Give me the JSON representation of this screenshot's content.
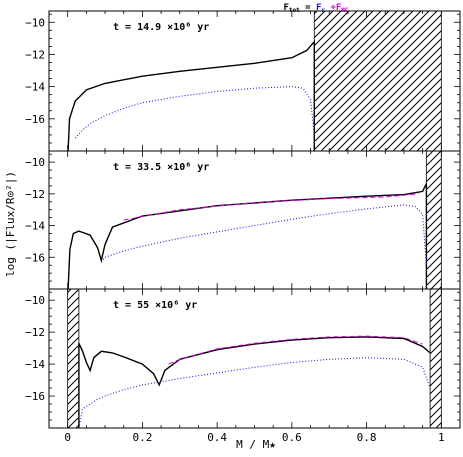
{
  "figure": {
    "formula": {
      "lhs": "F",
      "lhs_sub": "tot",
      "eq": " = ",
      "t1": "F",
      "t1_sub": "r",
      "plus": " +",
      "t2": "F",
      "t2_sub": "MC",
      "colors": {
        "tot": "#000000",
        "r": "#2020e0",
        "mc": "#e000e0"
      }
    },
    "ylabel": "log (|Flux/R⊙²|)",
    "xlabel": "M / M★",
    "x_ticks": [
      "0",
      "0.2",
      "0.4",
      "0.6",
      "0.8",
      "1"
    ],
    "y_ticks": [
      "−10",
      "−12",
      "−14",
      "−16"
    ]
  },
  "chart_data": [
    {
      "type": "line",
      "panel_label": "t = 14.9 ×10⁶ yr",
      "xlim": [
        -0.05,
        1.05
      ],
      "ylim": [
        -18,
        -9.3
      ],
      "hatched_regions": [
        [
          0.66,
          1.0
        ]
      ],
      "series": [
        {
          "name": "F_tot",
          "style": "solid",
          "color": "#000000",
          "x": [
            0.001,
            0.005,
            0.02,
            0.05,
            0.1,
            0.2,
            0.3,
            0.4,
            0.5,
            0.6,
            0.64,
            0.66,
            0.66
          ],
          "y": [
            -18.0,
            -16.0,
            -14.9,
            -14.2,
            -13.8,
            -13.35,
            -13.05,
            -12.8,
            -12.55,
            -12.2,
            -11.75,
            -11.2,
            -18.0
          ]
        },
        {
          "name": "F_r",
          "style": "dotted",
          "color": "#2020e0",
          "x": [
            0.02,
            0.04,
            0.06,
            0.1,
            0.15,
            0.2,
            0.3,
            0.4,
            0.5,
            0.6,
            0.63,
            0.65,
            0.66
          ],
          "y": [
            -17.2,
            -16.7,
            -16.3,
            -15.8,
            -15.35,
            -15.0,
            -14.6,
            -14.3,
            -14.1,
            -14.0,
            -14.1,
            -14.8,
            -17.0
          ]
        }
      ]
    },
    {
      "type": "line",
      "panel_label": "t = 33.5 ×10⁶ yr",
      "xlim": [
        -0.05,
        1.05
      ],
      "ylim": [
        -18,
        -9.3
      ],
      "hatched_regions": [
        [
          0.96,
          1.0
        ]
      ],
      "series": [
        {
          "name": "F_tot",
          "style": "solid",
          "color": "#000000",
          "x": [
            0.001,
            0.006,
            0.015,
            0.03,
            0.06,
            0.08,
            0.09,
            0.1,
            0.12,
            0.2,
            0.4,
            0.6,
            0.8,
            0.9,
            0.95,
            0.96,
            0.96
          ],
          "y": [
            -18.0,
            -15.5,
            -14.5,
            -14.35,
            -14.6,
            -15.4,
            -16.2,
            -15.2,
            -14.1,
            -13.4,
            -12.75,
            -12.4,
            -12.15,
            -12.05,
            -11.85,
            -11.35,
            -18.0
          ]
        },
        {
          "name": "F_MC",
          "style": "dashed",
          "color": "#e000e0",
          "x": [
            0.15,
            0.3,
            0.5,
            0.7,
            0.85,
            0.94
          ],
          "y": [
            -13.65,
            -13.0,
            -12.55,
            -12.3,
            -12.2,
            -12.0
          ]
        },
        {
          "name": "F_r",
          "style": "dotted",
          "color": "#2020e0",
          "x": [
            0.09,
            0.1,
            0.15,
            0.2,
            0.3,
            0.4,
            0.5,
            0.6,
            0.7,
            0.8,
            0.9,
            0.93,
            0.95,
            0.96
          ],
          "y": [
            -16.3,
            -16.0,
            -15.6,
            -15.3,
            -14.8,
            -14.4,
            -14.0,
            -13.6,
            -13.25,
            -12.95,
            -12.7,
            -12.8,
            -13.3,
            -16.5
          ]
        }
      ]
    },
    {
      "type": "line",
      "panel_label": "t = 55 ×10⁶ yr",
      "xlim": [
        -0.05,
        1.05
      ],
      "ylim": [
        -18,
        -9.3
      ],
      "hatched_regions": [
        [
          0.0,
          0.03
        ],
        [
          0.97,
          1.0
        ]
      ],
      "series": [
        {
          "name": "F_tot",
          "style": "solid",
          "color": "#000000",
          "x": [
            0.03,
            0.03,
            0.04,
            0.05,
            0.06,
            0.07,
            0.09,
            0.12,
            0.15,
            0.2,
            0.23,
            0.245,
            0.25,
            0.26,
            0.3,
            0.4,
            0.5,
            0.6,
            0.7,
            0.8,
            0.9,
            0.95,
            0.97
          ],
          "y": [
            -18.0,
            -12.7,
            -13.2,
            -13.9,
            -14.4,
            -13.6,
            -13.2,
            -13.3,
            -13.55,
            -14.0,
            -14.6,
            -15.3,
            -15.0,
            -14.4,
            -13.7,
            -13.1,
            -12.75,
            -12.5,
            -12.35,
            -12.3,
            -12.4,
            -12.9,
            -13.3
          ]
        },
        {
          "name": "F_MC",
          "style": "dashed",
          "color": "#e000e0",
          "x": [
            0.27,
            0.3,
            0.4,
            0.5,
            0.6,
            0.7,
            0.8,
            0.9,
            0.95
          ],
          "y": [
            -14.0,
            -13.7,
            -13.05,
            -12.7,
            -12.45,
            -12.3,
            -12.25,
            -12.35,
            -12.75
          ]
        },
        {
          "name": "F_r",
          "style": "dotted",
          "color": "#2020e0",
          "x": [
            0.03,
            0.04,
            0.06,
            0.08,
            0.1,
            0.15,
            0.2,
            0.25,
            0.3,
            0.4,
            0.5,
            0.6,
            0.7,
            0.8,
            0.9,
            0.95,
            0.97
          ],
          "y": [
            -18.0,
            -16.8,
            -16.5,
            -16.2,
            -16.0,
            -15.6,
            -15.3,
            -15.1,
            -14.9,
            -14.55,
            -14.2,
            -13.9,
            -13.7,
            -13.6,
            -13.7,
            -14.2,
            -15.5
          ]
        }
      ]
    }
  ]
}
